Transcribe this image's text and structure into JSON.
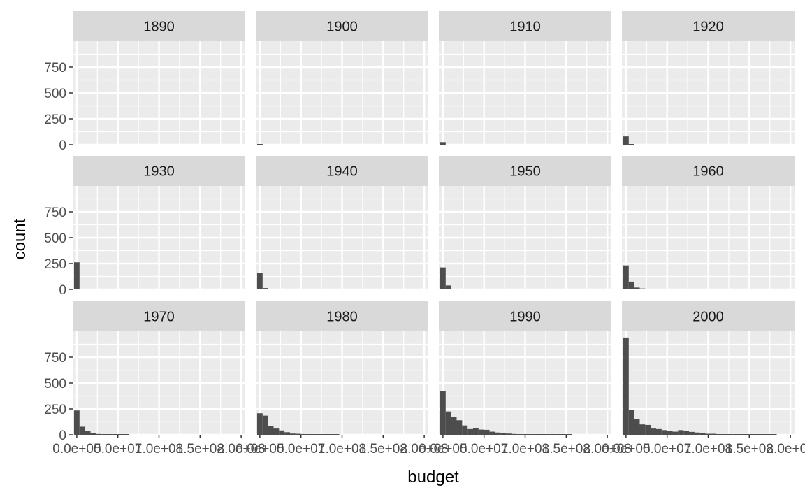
{
  "chart_data": {
    "type": "bar",
    "variant": "faceted-histogram",
    "xlabel": "budget",
    "ylabel": "count",
    "xlim": [
      -5000000,
      205000000
    ],
    "ylim": [
      0,
      1000
    ],
    "x_ticks": [
      0,
      50000000,
      100000000,
      150000000,
      200000000
    ],
    "x_tick_labels": [
      "0.0e+00",
      "5.0e+07",
      "1.0e+08",
      "1.5e+08",
      "2.0e+08"
    ],
    "y_ticks": [
      0,
      250,
      500,
      750
    ],
    "y_tick_labels": [
      "0",
      "250",
      "500",
      "750"
    ],
    "bin_width": 6666667,
    "bin_starts": [
      -3333333,
      3333333,
      10000000,
      16666667,
      23333333,
      30000000,
      36666667,
      43333333,
      50000000,
      56666667,
      63333333,
      70000000,
      76666667,
      83333333,
      90000000,
      96666667,
      103333333,
      110000000,
      116666667,
      123333333,
      130000000,
      136666667,
      143333333,
      150000000,
      156666667,
      163333333,
      170000000,
      176666667,
      183333333,
      190000000
    ],
    "grid": true,
    "bar_color": "#4d4d4d",
    "panel_background": "#ebebeb",
    "strip_background": "#d9d9d9",
    "panels": [
      {
        "label": "1890",
        "counts": [
          0,
          0,
          0,
          0,
          0,
          0,
          0,
          0,
          0,
          0,
          0,
          0,
          0,
          0,
          0,
          0,
          0,
          0,
          0,
          0,
          0,
          0,
          0,
          0,
          0,
          0,
          0,
          0,
          0,
          0
        ]
      },
      {
        "label": "1900",
        "counts": [
          3,
          0,
          0,
          0,
          0,
          0,
          0,
          0,
          0,
          0,
          0,
          0,
          0,
          0,
          0,
          0,
          0,
          0,
          0,
          0,
          0,
          0,
          0,
          0,
          0,
          0,
          0,
          0,
          0,
          0
        ]
      },
      {
        "label": "1910",
        "counts": [
          25,
          0,
          0,
          0,
          0,
          0,
          0,
          0,
          0,
          0,
          0,
          0,
          0,
          0,
          0,
          0,
          0,
          0,
          0,
          0,
          0,
          0,
          0,
          0,
          0,
          0,
          0,
          0,
          0,
          0
        ]
      },
      {
        "label": "1920",
        "counts": [
          80,
          6,
          0,
          0,
          0,
          0,
          0,
          0,
          0,
          0,
          0,
          0,
          0,
          0,
          0,
          0,
          0,
          0,
          0,
          0,
          0,
          0,
          0,
          0,
          0,
          0,
          0,
          0,
          0,
          0
        ]
      },
      {
        "label": "1930",
        "counts": [
          262,
          6,
          0,
          0,
          0,
          0,
          0,
          0,
          0,
          0,
          0,
          0,
          0,
          0,
          0,
          0,
          0,
          0,
          0,
          0,
          0,
          0,
          0,
          0,
          0,
          0,
          0,
          0,
          0,
          0
        ]
      },
      {
        "label": "1940",
        "counts": [
          157,
          13,
          0,
          0,
          0,
          0,
          0,
          0,
          0,
          0,
          0,
          0,
          0,
          0,
          0,
          0,
          0,
          0,
          0,
          0,
          0,
          0,
          0,
          0,
          0,
          0,
          0,
          0,
          0,
          0
        ]
      },
      {
        "label": "1950",
        "counts": [
          212,
          38,
          4,
          0,
          0,
          0,
          0,
          0,
          0,
          0,
          0,
          0,
          0,
          0,
          0,
          0,
          0,
          0,
          0,
          0,
          0,
          0,
          0,
          0,
          0,
          0,
          0,
          0,
          0,
          0
        ]
      },
      {
        "label": "1960",
        "counts": [
          232,
          75,
          18,
          9,
          3,
          2,
          1,
          0,
          0,
          0,
          0,
          0,
          0,
          0,
          0,
          0,
          0,
          0,
          0,
          0,
          0,
          0,
          0,
          0,
          0,
          0,
          0,
          0,
          0,
          0
        ]
      },
      {
        "label": "1970",
        "counts": [
          235,
          78,
          38,
          18,
          8,
          5,
          4,
          2,
          1,
          1,
          0,
          0,
          0,
          0,
          0,
          0,
          0,
          0,
          0,
          0,
          0,
          0,
          0,
          0,
          0,
          0,
          0,
          0,
          0,
          0
        ]
      },
      {
        "label": "1980",
        "counts": [
          208,
          185,
          85,
          60,
          42,
          25,
          12,
          10,
          7,
          5,
          4,
          3,
          2,
          2,
          1,
          0,
          0,
          0,
          0,
          0,
          0,
          0,
          0,
          0,
          0,
          0,
          0,
          0,
          0,
          0
        ]
      },
      {
        "label": "1990",
        "counts": [
          425,
          225,
          175,
          140,
          90,
          55,
          65,
          50,
          48,
          30,
          22,
          15,
          12,
          8,
          6,
          5,
          4,
          4,
          3,
          3,
          2,
          2,
          1,
          1,
          0,
          0,
          0,
          0,
          0,
          0
        ]
      },
      {
        "label": "2000",
        "counts": [
          940,
          240,
          155,
          100,
          95,
          60,
          55,
          45,
          35,
          30,
          45,
          35,
          28,
          22,
          15,
          10,
          10,
          7,
          5,
          5,
          4,
          5,
          3,
          2,
          2,
          1,
          1,
          1,
          0,
          0
        ]
      }
    ]
  }
}
